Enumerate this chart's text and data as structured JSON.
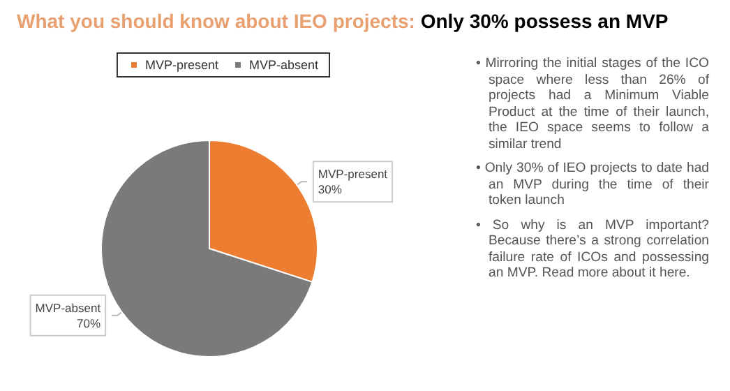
{
  "chart_data": {
    "type": "pie",
    "title": "What you should know about IEO projects:",
    "subtitle": "Only 30% possess an MVP",
    "categories": [
      "MVP-present",
      "MVP-absent"
    ],
    "values": [
      30,
      70
    ],
    "colors": [
      "#ed7d31",
      "#7a7a7a"
    ],
    "legend": "top",
    "value_labels": [
      "30%",
      "70%"
    ],
    "annotations": [
      "• Mirroring the initial stages of the ICO space where less than 26% of projects had a Minimum Viable Product at the time of their launch, the IEO space seems to follow a similar trend",
      "• Only 30% of IEO projects to date had an MVP during the time of their token launch",
      "• So why is an MVP important? Because there’s a strong correlation failure rate of ICOs and possessing an MVP. Read more about it here."
    ]
  }
}
